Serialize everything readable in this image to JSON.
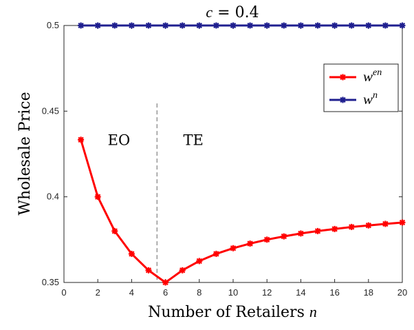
{
  "chart_data": {
    "type": "line",
    "title_var": "c",
    "title_rest": " = 0.4",
    "xlabel_text": "Number of Retailers ",
    "xlabel_var": "n",
    "ylabel": "Wholesale Price",
    "xlim": [
      0,
      20
    ],
    "ylim": [
      0.35,
      0.5
    ],
    "xticks": [
      "0",
      "2",
      "4",
      "6",
      "8",
      "10",
      "12",
      "14",
      "16",
      "18",
      "20"
    ],
    "yticks": [
      "0.35",
      "0.4",
      "0.45",
      "0.5"
    ],
    "grid": false,
    "legend_position": "top-right",
    "series": [
      {
        "name_base": "w",
        "name_sup": "en",
        "color": "#ff0000",
        "x": [
          1,
          2,
          3,
          4,
          5,
          6,
          7,
          8,
          9,
          10,
          11,
          12,
          13,
          14,
          15,
          16,
          17,
          18,
          19,
          20
        ],
        "values": [
          0.4333,
          0.4,
          0.38,
          0.3667,
          0.3571,
          0.35,
          0.3571,
          0.3625,
          0.3667,
          0.37,
          0.3727,
          0.375,
          0.3769,
          0.3786,
          0.38,
          0.3812,
          0.3824,
          0.3833,
          0.3842,
          0.385
        ]
      },
      {
        "name_base": "w",
        "name_sup": "n",
        "color": "#1f1f8f",
        "x": [
          1,
          2,
          3,
          4,
          5,
          6,
          7,
          8,
          9,
          10,
          11,
          12,
          13,
          14,
          15,
          16,
          17,
          18,
          19,
          20
        ],
        "values": [
          0.5,
          0.5,
          0.5,
          0.5,
          0.5,
          0.5,
          0.5,
          0.5,
          0.5,
          0.5,
          0.5,
          0.5,
          0.5,
          0.5,
          0.5,
          0.5,
          0.5,
          0.5,
          0.5,
          0.5
        ]
      }
    ],
    "divider_x": 5.5,
    "divider_y_top": 0.4545,
    "annotations": [
      {
        "text": "EO",
        "x": 3.25,
        "y": 0.4335
      },
      {
        "text": "TE",
        "x": 7.65,
        "y": 0.4335
      }
    ]
  }
}
